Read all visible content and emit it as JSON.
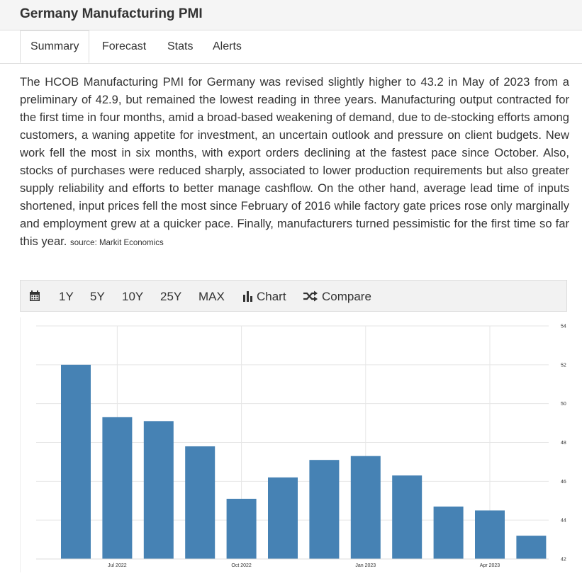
{
  "header": {
    "title": "Germany Manufacturing PMI"
  },
  "tabs": [
    {
      "label": "Summary",
      "active": true
    },
    {
      "label": "Forecast"
    },
    {
      "label": "Stats"
    },
    {
      "label": "Alerts"
    }
  ],
  "summary": {
    "text": "The HCOB Manufacturing PMI for Germany was revised slightly higher to 43.2 in May of 2023 from a preliminary of 42.9, but remained the lowest reading in three years. Manufacturing output contracted for the first time in four months, amid a broad-based weakening of demand, due to de-stocking efforts among customers, a waning appetite for investment, an uncertain outlook and pressure on client budgets. New work fell the most in six months, with export orders declining at the fastest pace since October. Also, stocks of purchases were reduced sharply, associated to lower production requirements but also greater supply reliability and efforts to better manage cashflow. On the other hand, average lead time of inputs shortened, input prices fell the most since February of 2016 while factory gate prices rose only marginally and employment grew at a quicker pace. Finally, manufacturers turned pessimistic for the first time so far this year.",
    "source": "source: Markit Economics"
  },
  "toolbar": {
    "calendar_icon": "calendar-icon",
    "ranges": [
      "1Y",
      "5Y",
      "10Y",
      "25Y",
      "MAX"
    ],
    "chart_label": "Chart",
    "chart_icon": "bar-chart-icon",
    "compare_label": "Compare",
    "compare_icon": "shuffle-icon"
  },
  "chart_data": {
    "type": "bar",
    "categories": [
      "Jun 2022",
      "Jul 2022",
      "Aug 2022",
      "Sep 2022",
      "Oct 2022",
      "Nov 2022",
      "Dec 2022",
      "Jan 2023",
      "Feb 2023",
      "Mar 2023",
      "Apr 2023",
      "May 2023"
    ],
    "values": [
      52.0,
      49.3,
      49.1,
      47.8,
      45.1,
      46.2,
      47.1,
      47.3,
      46.3,
      44.7,
      44.5,
      43.2
    ],
    "x_tick_labels": [
      {
        "label": "Jul 2022",
        "category": "Jul 2022"
      },
      {
        "label": "Oct 2022",
        "category": "Oct 2022"
      },
      {
        "label": "Jan 2023",
        "category": "Jan 2023"
      },
      {
        "label": "Apr 2023",
        "category": "Apr 2023"
      }
    ],
    "y_ticks": [
      42,
      44,
      46,
      48,
      50,
      52,
      54
    ],
    "ylim": [
      42,
      54
    ],
    "y_axis_side": "right",
    "grid": true,
    "bar_color": "#4682b4",
    "title": "",
    "xlabel": "",
    "ylabel": ""
  }
}
